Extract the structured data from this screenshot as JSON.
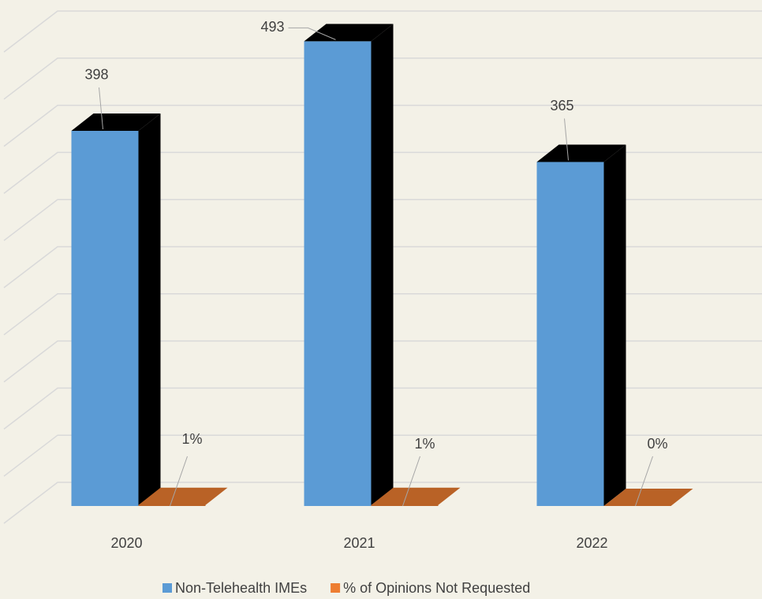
{
  "chart_data": {
    "type": "bar3d",
    "categories": [
      "2020",
      "2021",
      "2022"
    ],
    "series": [
      {
        "name": "Non-Telehealth IMEs",
        "color": "#5b9bd5",
        "values": [
          398,
          493,
          365
        ]
      },
      {
        "name": "% of Opinions Not Requested",
        "color": "#ed7d31",
        "values": [
          1,
          1,
          0
        ],
        "value_labels": [
          "1%",
          "1%",
          "0%"
        ]
      }
    ],
    "ylim": [
      0,
      500
    ],
    "yticks": [
      0,
      50,
      100,
      150,
      200,
      250,
      300,
      350,
      400,
      450,
      500
    ],
    "grid": true,
    "legend": "bottom"
  }
}
